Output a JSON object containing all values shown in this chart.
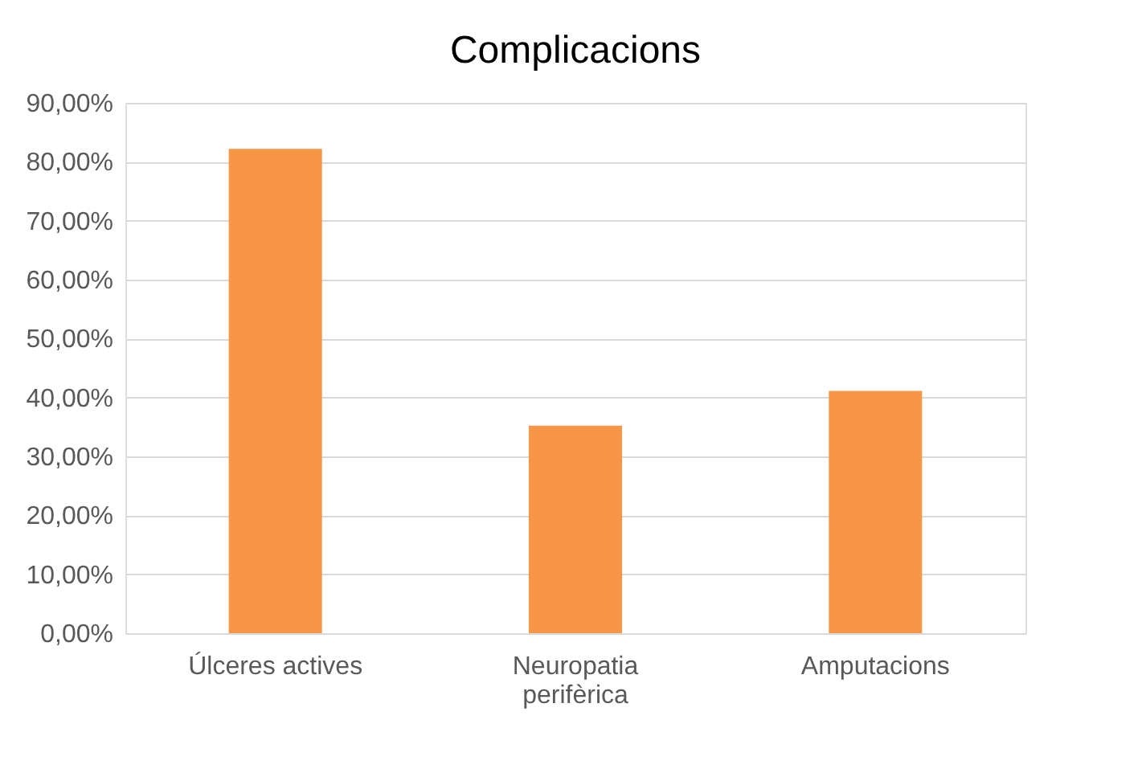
{
  "chart_data": {
    "type": "bar",
    "title": "Complicacions",
    "categories": [
      "Úlceres actives",
      "Neuropatia perifèrica",
      "Amputacions"
    ],
    "values": [
      82.2,
      35.2,
      41.1
    ],
    "color": "#f79646",
    "ylim": [
      0,
      90
    ],
    "yticks": [
      {
        "value": 0,
        "label": "0,00%"
      },
      {
        "value": 10,
        "label": "10,00%"
      },
      {
        "value": 20,
        "label": "20,00%"
      },
      {
        "value": 30,
        "label": "30,00%"
      },
      {
        "value": 40,
        "label": "40,00%"
      },
      {
        "value": 50,
        "label": "50,00%"
      },
      {
        "value": 60,
        "label": "60,00%"
      },
      {
        "value": 70,
        "label": "70,00%"
      },
      {
        "value": 80,
        "label": "80,00%"
      },
      {
        "value": 90,
        "label": "90,00%"
      }
    ],
    "grid": "y"
  }
}
